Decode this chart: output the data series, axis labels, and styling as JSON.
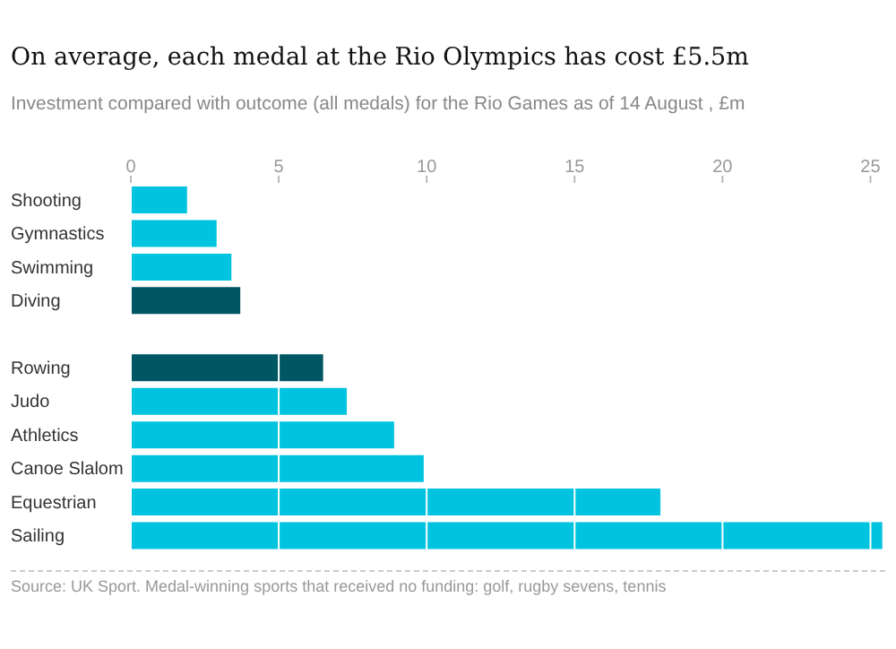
{
  "chart_data": {
    "type": "bar",
    "orientation": "horizontal",
    "title": "On average, each medal at the Rio Olympics has cost £5.5m",
    "subtitle": "Investment compared with outcome (all medals) for the Rio Games as of 14 August , £m",
    "categories": [
      "Shooting",
      "Gymnastics",
      "Swimming",
      "Diving",
      null,
      "Rowing",
      "Judo",
      "Athletics",
      "Canoe Slalom",
      "Equestrian",
      "Sailing"
    ],
    "values": [
      1.9,
      2.9,
      3.4,
      3.7,
      null,
      6.5,
      7.3,
      8.9,
      9.9,
      17.9,
      25.4
    ],
    "colors": [
      "#00c4df",
      "#00c4df",
      "#00c4df",
      "#005663",
      "#005663",
      "#005663",
      "#00c4df",
      "#00c4df",
      "#00c4df",
      "#00c4df",
      "#00c4df"
    ],
    "xlim": [
      0,
      25.5
    ],
    "xticks": [
      0,
      5,
      10,
      15,
      20,
      25
    ],
    "grid": "x",
    "annotations": [
      "Source: UK Sport. Medal-winning sports that received no funding: golf, rugby sevens, tennis"
    ]
  }
}
